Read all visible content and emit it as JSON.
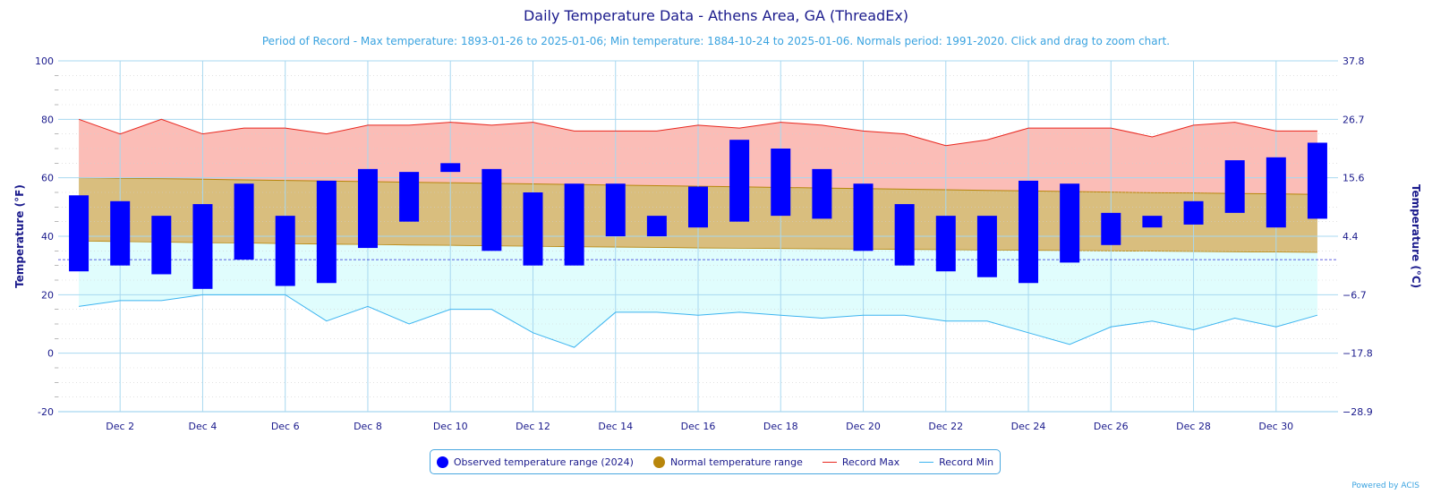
{
  "title": "Daily Temperature Data - Athens Area, GA (ThreadEx)",
  "subtitle": "Period of Record - Max temperature: 1893-01-26 to 2025-01-06; Min temperature: 1884-10-24 to 2025-01-06. Normals period: 1991-2020. Click and drag to zoom chart.",
  "credit": "Powered by ACIS",
  "legend": {
    "observed": "Observed temperature range (2024)",
    "normal": "Normal temperature range",
    "record_max": "Record Max",
    "record_min": "Record Min"
  },
  "colors": {
    "observed": "#0000ff",
    "normal_fill": "#d9be7e",
    "normal_dot": "#b8860b",
    "record_max_line": "#e8261e",
    "record_max_fill": "#fbbdb7",
    "record_min_line": "#3cb4f0",
    "record_min_fill": "#e0fdfd",
    "grid": "#a8d8f0",
    "axis_text": "#1a1a8c",
    "freeze_line": "#2d2dd6"
  },
  "chart_data": {
    "type": "bar",
    "title": "Daily Temperature Data - Athens Area, GA (ThreadEx)",
    "ylabel": "Temperature (°F)",
    "ylabel_right": "Temperature (°C)",
    "ylim": [
      -20,
      100
    ],
    "yticks": [
      -20,
      0,
      20,
      40,
      60,
      80,
      100
    ],
    "yticks_right": [
      "−28.9",
      "−17.8",
      "−6.7",
      "4.4",
      "15.6",
      "26.7",
      "37.8"
    ],
    "xlim": [
      0.5,
      31.5
    ],
    "xticks": [
      "Dec 2",
      "Dec 4",
      "Dec 6",
      "Dec 8",
      "Dec 10",
      "Dec 12",
      "Dec 14",
      "Dec 16",
      "Dec 18",
      "Dec 20",
      "Dec 22",
      "Dec 24",
      "Dec 26",
      "Dec 28",
      "Dec 30"
    ],
    "xtick_days": [
      2,
      4,
      6,
      8,
      10,
      12,
      14,
      16,
      18,
      20,
      22,
      24,
      26,
      28,
      30
    ],
    "days": [
      1,
      2,
      3,
      4,
      5,
      6,
      7,
      8,
      9,
      10,
      11,
      12,
      13,
      14,
      15,
      16,
      17,
      18,
      19,
      20,
      21,
      22,
      23,
      24,
      25,
      26,
      27,
      28,
      29,
      30,
      31
    ],
    "freeze_line": 32,
    "grid": true,
    "legend_position": "bottom",
    "series": [
      {
        "name": "Observed temperature range (2024)",
        "low": [
          28,
          30,
          27,
          22,
          32,
          23,
          24,
          36,
          45,
          62,
          35,
          30,
          30,
          40,
          40,
          43,
          45,
          47,
          46,
          35,
          30,
          28,
          26,
          24,
          31,
          37,
          43,
          44,
          48,
          43,
          46
        ],
        "high": [
          54,
          52,
          47,
          51,
          58,
          47,
          59,
          63,
          62,
          65,
          63,
          55,
          58,
          58,
          47,
          57,
          73,
          70,
          63,
          58,
          51,
          47,
          47,
          59,
          58,
          48,
          47,
          52,
          66,
          67,
          72
        ]
      },
      {
        "name": "Normal temperature range",
        "low": [
          38.4,
          38.2,
          38.0,
          37.8,
          37.7,
          37.5,
          37.3,
          37.2,
          37.0,
          36.9,
          36.7,
          36.6,
          36.4,
          36.3,
          36.2,
          36.0,
          35.9,
          35.8,
          35.7,
          35.6,
          35.5,
          35.4,
          35.3,
          35.2,
          35.1,
          35.0,
          34.9,
          34.8,
          34.7,
          34.6,
          34.5
        ],
        "high": [
          60.0,
          59.8,
          59.7,
          59.5,
          59.3,
          59.1,
          58.9,
          58.7,
          58.5,
          58.3,
          58.1,
          57.9,
          57.7,
          57.5,
          57.3,
          57.1,
          56.9,
          56.7,
          56.5,
          56.3,
          56.1,
          55.9,
          55.7,
          55.5,
          55.3,
          55.1,
          54.9,
          54.8,
          54.6,
          54.5,
          54.3
        ]
      },
      {
        "name": "Record Max",
        "values": [
          80,
          75,
          80,
          75,
          77,
          77,
          75,
          78,
          78,
          79,
          78,
          79,
          76,
          76,
          76,
          78,
          77,
          79,
          78,
          76,
          75,
          71,
          73,
          77,
          77,
          77,
          74,
          78,
          79,
          76,
          76
        ]
      },
      {
        "name": "Record Min",
        "values": [
          16,
          18,
          18,
          20,
          20,
          20,
          11,
          16,
          10,
          15,
          15,
          7,
          2,
          14,
          14,
          13,
          14,
          13,
          12,
          13,
          13,
          11,
          11,
          7,
          3,
          9,
          11,
          8,
          12,
          9,
          13
        ]
      }
    ]
  }
}
